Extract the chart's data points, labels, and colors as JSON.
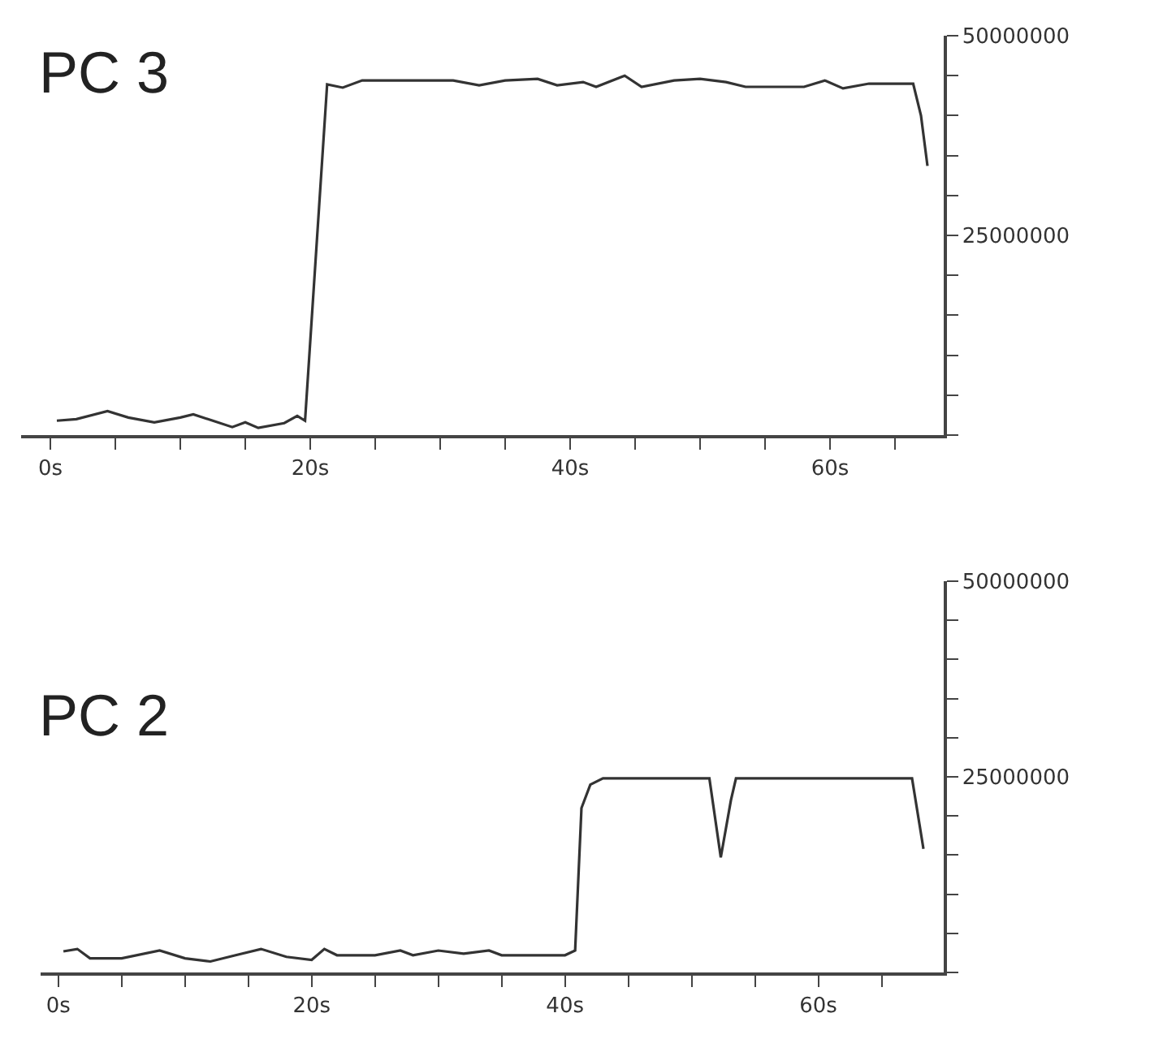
{
  "chart_data": [
    {
      "type": "line",
      "title": "PC 3",
      "color": "#333333",
      "marker": "none",
      "line_style": "solid",
      "x": [
        0.5,
        2,
        4.4,
        6,
        8,
        10,
        11,
        12.5,
        14,
        15,
        16,
        18,
        19,
        19.6,
        21.3,
        22.5,
        24,
        27,
        31,
        33,
        35,
        37.5,
        39,
        41,
        42,
        44.2,
        45.5,
        48,
        50,
        52,
        53.5,
        58,
        59.6,
        61,
        63,
        66.4,
        67,
        67.5
      ],
      "values": [
        1800000,
        2000000,
        3000000,
        2200000,
        1600000,
        2200000,
        2600000,
        1800000,
        1000000,
        1600000,
        900000,
        1500000,
        2400000,
        1800000,
        43900000,
        43500000,
        44400000,
        44400000,
        44400000,
        43800000,
        44400000,
        44600000,
        43800000,
        44200000,
        43600000,
        45000000,
        43600000,
        44400000,
        44600000,
        44200000,
        43600000,
        43600000,
        44400000,
        43400000,
        44000000,
        44000000,
        40000000,
        33700000
      ],
      "xlim": [
        -2.25,
        68.75
      ],
      "ylim": [
        0,
        50000000
      ],
      "xticks": [
        {
          "value": 0,
          "label": "0s"
        },
        {
          "value": 5,
          "label": null
        },
        {
          "value": 10,
          "label": null
        },
        {
          "value": 15,
          "label": null
        },
        {
          "value": 20,
          "label": "20s"
        },
        {
          "value": 25,
          "label": null
        },
        {
          "value": 30,
          "label": null
        },
        {
          "value": 35,
          "label": null
        },
        {
          "value": 40,
          "label": "40s"
        },
        {
          "value": 45,
          "label": null
        },
        {
          "value": 50,
          "label": null
        },
        {
          "value": 55,
          "label": null
        },
        {
          "value": 60,
          "label": "60s"
        },
        {
          "value": 65,
          "label": null
        }
      ],
      "yticks": [
        {
          "value": 0,
          "label": null
        },
        {
          "value": 5000000,
          "label": null
        },
        {
          "value": 10000000,
          "label": null
        },
        {
          "value": 15000000,
          "label": null
        },
        {
          "value": 20000000,
          "label": null
        },
        25000000,
        {
          "value": 30000000,
          "label": null
        },
        {
          "value": 35000000,
          "label": null
        },
        {
          "value": 40000000,
          "label": null
        },
        {
          "value": 45000000,
          "label": null
        },
        50000000
      ]
    },
    {
      "type": "line",
      "title": "PC 2",
      "color": "#333333",
      "marker": "none",
      "line_style": "solid",
      "x": [
        0.4,
        1.5,
        2.5,
        5,
        8,
        10,
        12,
        14,
        16,
        18,
        20,
        21,
        22,
        25,
        27,
        28,
        30,
        32,
        34,
        35,
        40,
        40.8,
        41.3,
        42,
        43,
        51.4,
        52.3,
        53.1,
        53.5,
        67.4,
        68.3
      ],
      "values": [
        2700000,
        3000000,
        1800000,
        1800000,
        2800000,
        1800000,
        1400000,
        2200000,
        3000000,
        2000000,
        1600000,
        3000000,
        2200000,
        2200000,
        2800000,
        2200000,
        2800000,
        2400000,
        2800000,
        2200000,
        2200000,
        2800000,
        21000000,
        24000000,
        24800000,
        24800000,
        14700000,
        22000000,
        24800000,
        24800000,
        15800000
      ],
      "xlim": [
        -1.4,
        69.9
      ],
      "ylim": [
        0,
        50000000
      ],
      "xticks": [
        {
          "value": 0,
          "label": "0s"
        },
        {
          "value": 5,
          "label": null
        },
        {
          "value": 10,
          "label": null
        },
        {
          "value": 15,
          "label": null
        },
        {
          "value": 20,
          "label": "20s"
        },
        {
          "value": 25,
          "label": null
        },
        {
          "value": 30,
          "label": null
        },
        {
          "value": 35,
          "label": null
        },
        {
          "value": 40,
          "label": "40s"
        },
        {
          "value": 45,
          "label": null
        },
        {
          "value": 50,
          "label": null
        },
        {
          "value": 55,
          "label": null
        },
        {
          "value": 60,
          "label": "60s"
        },
        {
          "value": 65,
          "label": null
        }
      ],
      "yticks": [
        {
          "value": 0,
          "label": null
        },
        {
          "value": 5000000,
          "label": null
        },
        {
          "value": 10000000,
          "label": null
        },
        {
          "value": 15000000,
          "label": null
        },
        {
          "value": 20000000,
          "label": null
        },
        25000000,
        {
          "value": 30000000,
          "label": null
        },
        {
          "value": 35000000,
          "label": null
        },
        {
          "value": 40000000,
          "label": null
        },
        {
          "value": 45000000,
          "label": null
        },
        50000000
      ]
    }
  ]
}
